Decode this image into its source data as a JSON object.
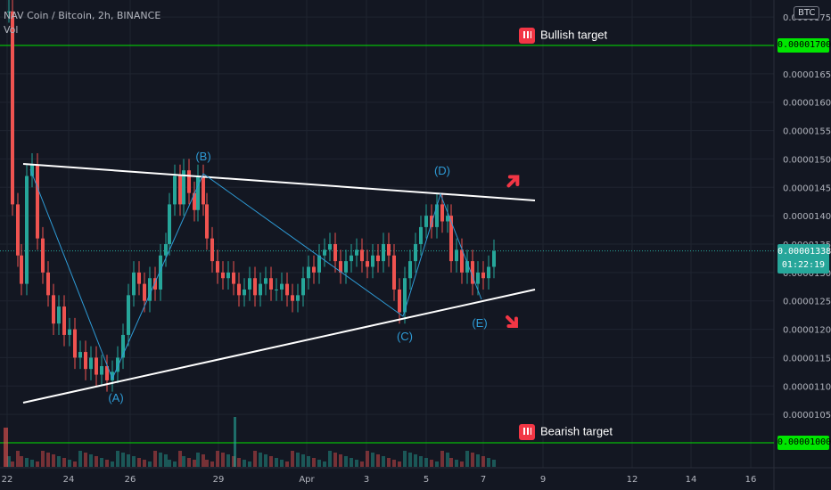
{
  "header": {
    "symbol_line": "NAV Coin / Bitcoin, 2h, BINANCE",
    "volume_label": "Vol",
    "currency_badge": "BTC"
  },
  "annotations": {
    "bullish_label": "Bullish target",
    "bearish_label": "Bearish target",
    "wave_labels": [
      "(A)",
      "(B)",
      "(C)",
      "(D)",
      "(E)"
    ]
  },
  "price_axis": {
    "bullish_target_price": "0.00001700",
    "bearish_target_price": "0.00001000",
    "current_price": "0.00001338",
    "countdown": "01:22:19"
  },
  "chart_data": {
    "type": "candlestick",
    "title": "NAV Coin / Bitcoin, 2h, BINANCE",
    "x_tick_labels": [
      "22",
      "24",
      "26",
      "29",
      "Apr",
      "3",
      "5",
      "7",
      "9",
      "12",
      "14",
      "16"
    ],
    "y_tick_labels": [
      "0.00001050",
      "0.00001100",
      "0.00001150",
      "0.00001200",
      "0.00001250",
      "0.00001300",
      "0.00001350",
      "0.00001400",
      "0.00001450",
      "0.00001500",
      "0.00001550",
      "0.00001600",
      "0.00001650",
      "0.00001750"
    ],
    "ylim": [
      1e-05,
      1.77e-05
    ],
    "grid": true,
    "current_price": 1.338e-05,
    "horizontal_lines": [
      {
        "label": "Bullish target",
        "value": 1.7e-05,
        "color": "#00e600"
      },
      {
        "label": "Bearish target",
        "value": 1e-05,
        "color": "#00e600"
      }
    ],
    "triangle": {
      "upper": [
        [
          "22",
          1.493e-05
        ],
        [
          "9",
          1.428e-05
        ]
      ],
      "lower": [
        [
          "22",
          1.07e-05
        ],
        [
          "9",
          1.272e-05
        ]
      ]
    },
    "wave_points": [
      {
        "label": "(A)",
        "x": "25",
        "y": 1.11e-05
      },
      {
        "label": "(B)",
        "x": "28",
        "y": 1.472e-05
      },
      {
        "label": "(C)",
        "x": "Apr 4",
        "y": 1.222e-05
      },
      {
        "label": "(D)",
        "x": "Apr 5",
        "y": 1.455e-05
      },
      {
        "label": "(E)",
        "x": "Apr 6",
        "y": 1.25e-05
      }
    ],
    "colors": {
      "up": "#26a69a",
      "down": "#ef5350",
      "trendline": "#ffffff",
      "wave": "#2e9bd6",
      "arrow": "#f23645"
    }
  }
}
